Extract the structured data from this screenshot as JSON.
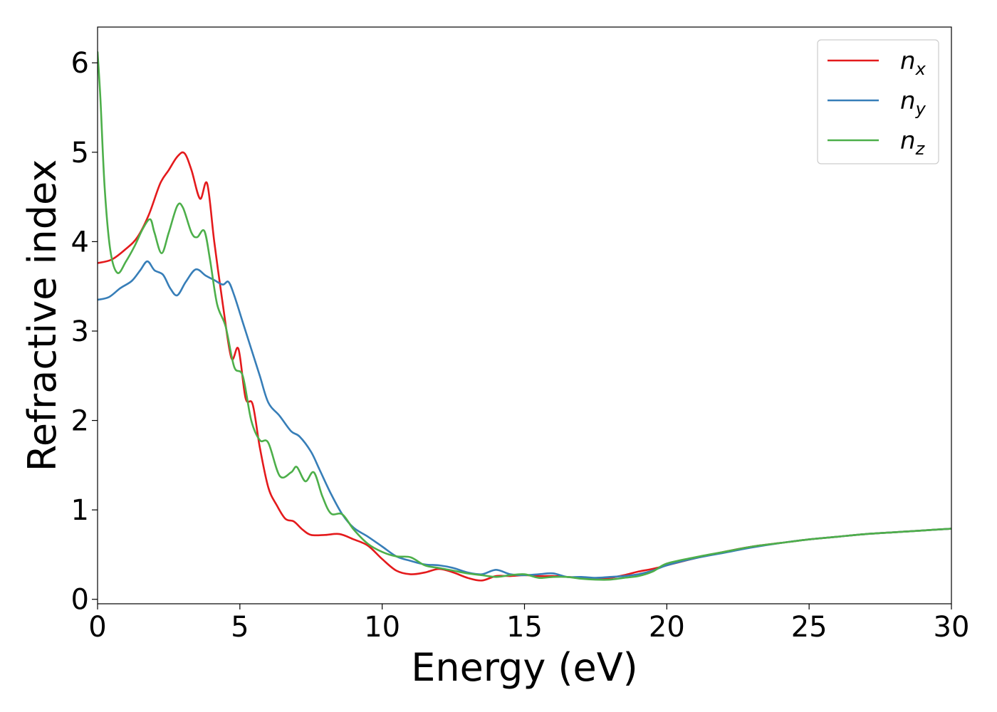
{
  "chart_data": {
    "type": "line",
    "title": "",
    "xlabel": "Energy (eV)",
    "ylabel": "Refractive index",
    "xlim": [
      0,
      30
    ],
    "ylim": [
      -0.05,
      6.4
    ],
    "xticks": [
      0,
      5,
      10,
      15,
      20,
      25,
      30
    ],
    "yticks": [
      0,
      1,
      2,
      3,
      4,
      5,
      6
    ],
    "grid": false,
    "legend_position": "top-right",
    "series": [
      {
        "name": "n_x",
        "label_base": "n",
        "label_sub": "x",
        "color": "#e41a1c",
        "x": [
          0,
          0.5,
          1.0,
          1.4,
          1.8,
          2.2,
          2.5,
          2.8,
          3.05,
          3.3,
          3.6,
          3.85,
          4.1,
          4.4,
          4.7,
          4.95,
          5.2,
          5.45,
          5.7,
          6.0,
          6.3,
          6.6,
          6.9,
          7.2,
          7.5,
          8.0,
          8.5,
          9.0,
          9.5,
          10.0,
          10.5,
          11.0,
          11.5,
          12.0,
          12.5,
          13.0,
          13.5,
          14.0,
          14.5,
          15.0,
          15.5,
          16.0,
          16.5,
          17.0,
          17.5,
          18.0,
          18.5,
          19.0,
          19.5,
          20.0,
          21.0,
          22.0,
          23.0,
          24.0,
          25.0,
          26.0,
          27.0,
          28.0,
          29.0,
          30.0
        ],
        "y": [
          3.76,
          3.8,
          3.92,
          4.05,
          4.3,
          4.65,
          4.8,
          4.95,
          4.99,
          4.8,
          4.48,
          4.65,
          4.0,
          3.3,
          2.7,
          2.8,
          2.25,
          2.18,
          1.7,
          1.25,
          1.05,
          0.9,
          0.87,
          0.78,
          0.72,
          0.72,
          0.73,
          0.67,
          0.6,
          0.45,
          0.32,
          0.28,
          0.3,
          0.34,
          0.3,
          0.24,
          0.21,
          0.26,
          0.26,
          0.27,
          0.26,
          0.26,
          0.25,
          0.24,
          0.23,
          0.24,
          0.27,
          0.31,
          0.34,
          0.38,
          0.46,
          0.53,
          0.59,
          0.63,
          0.67,
          0.7,
          0.73,
          0.75,
          0.77,
          0.79
        ]
      },
      {
        "name": "n_y",
        "label_base": "n",
        "label_sub": "y",
        "color": "#377eb8",
        "x": [
          0,
          0.4,
          0.8,
          1.2,
          1.5,
          1.75,
          2.0,
          2.3,
          2.55,
          2.8,
          3.1,
          3.45,
          3.8,
          4.1,
          4.4,
          4.6,
          4.8,
          5.1,
          5.4,
          5.7,
          6.0,
          6.4,
          6.8,
          7.1,
          7.5,
          7.8,
          8.2,
          8.6,
          9.0,
          9.5,
          10.0,
          10.5,
          11.0,
          11.5,
          12.0,
          12.5,
          13.0,
          13.5,
          14.0,
          14.5,
          15.0,
          15.5,
          16.0,
          16.5,
          17.0,
          17.5,
          18.0,
          18.5,
          19.0,
          19.5,
          20.0,
          21.0,
          22.0,
          23.0,
          24.0,
          25.0,
          26.0,
          27.0,
          28.0,
          29.0,
          30.0
        ],
        "y": [
          3.35,
          3.38,
          3.48,
          3.56,
          3.68,
          3.78,
          3.68,
          3.63,
          3.48,
          3.4,
          3.55,
          3.69,
          3.62,
          3.57,
          3.52,
          3.55,
          3.4,
          3.1,
          2.8,
          2.5,
          2.2,
          2.05,
          1.88,
          1.82,
          1.65,
          1.45,
          1.18,
          0.95,
          0.8,
          0.7,
          0.59,
          0.48,
          0.43,
          0.39,
          0.38,
          0.35,
          0.3,
          0.28,
          0.33,
          0.28,
          0.27,
          0.28,
          0.29,
          0.25,
          0.25,
          0.24,
          0.25,
          0.26,
          0.28,
          0.32,
          0.38,
          0.46,
          0.52,
          0.58,
          0.63,
          0.67,
          0.7,
          0.73,
          0.75,
          0.77,
          0.79
        ]
      },
      {
        "name": "n_z",
        "label_base": "n",
        "label_sub": "z",
        "color": "#4daf4a",
        "x": [
          0,
          0.1,
          0.25,
          0.45,
          0.7,
          1.0,
          1.3,
          1.6,
          1.85,
          2.0,
          2.25,
          2.5,
          2.8,
          3.0,
          3.3,
          3.5,
          3.75,
          3.95,
          4.2,
          4.5,
          4.8,
          5.1,
          5.4,
          5.7,
          6.0,
          6.4,
          6.8,
          7.0,
          7.3,
          7.6,
          7.9,
          8.2,
          8.6,
          9.0,
          9.5,
          10.0,
          10.5,
          11.0,
          11.5,
          12.0,
          12.5,
          13.0,
          13.5,
          14.0,
          14.5,
          15.0,
          15.5,
          16.0,
          16.5,
          17.0,
          17.5,
          18.0,
          18.5,
          19.0,
          19.5,
          20.0,
          21.0,
          22.0,
          23.0,
          24.0,
          25.0,
          26.0,
          27.0,
          28.0,
          29.0,
          30.0
        ],
        "y": [
          6.12,
          5.6,
          4.6,
          3.9,
          3.65,
          3.78,
          3.95,
          4.15,
          4.25,
          4.1,
          3.87,
          4.1,
          4.4,
          4.38,
          4.1,
          4.05,
          4.12,
          3.8,
          3.3,
          3.05,
          2.6,
          2.5,
          2.0,
          1.78,
          1.75,
          1.38,
          1.42,
          1.48,
          1.32,
          1.42,
          1.15,
          0.96,
          0.95,
          0.78,
          0.62,
          0.53,
          0.48,
          0.47,
          0.38,
          0.35,
          0.32,
          0.29,
          0.27,
          0.25,
          0.27,
          0.28,
          0.24,
          0.25,
          0.25,
          0.23,
          0.22,
          0.22,
          0.24,
          0.26,
          0.31,
          0.4,
          0.47,
          0.53,
          0.59,
          0.63,
          0.67,
          0.7,
          0.73,
          0.75,
          0.77,
          0.79
        ]
      }
    ]
  }
}
